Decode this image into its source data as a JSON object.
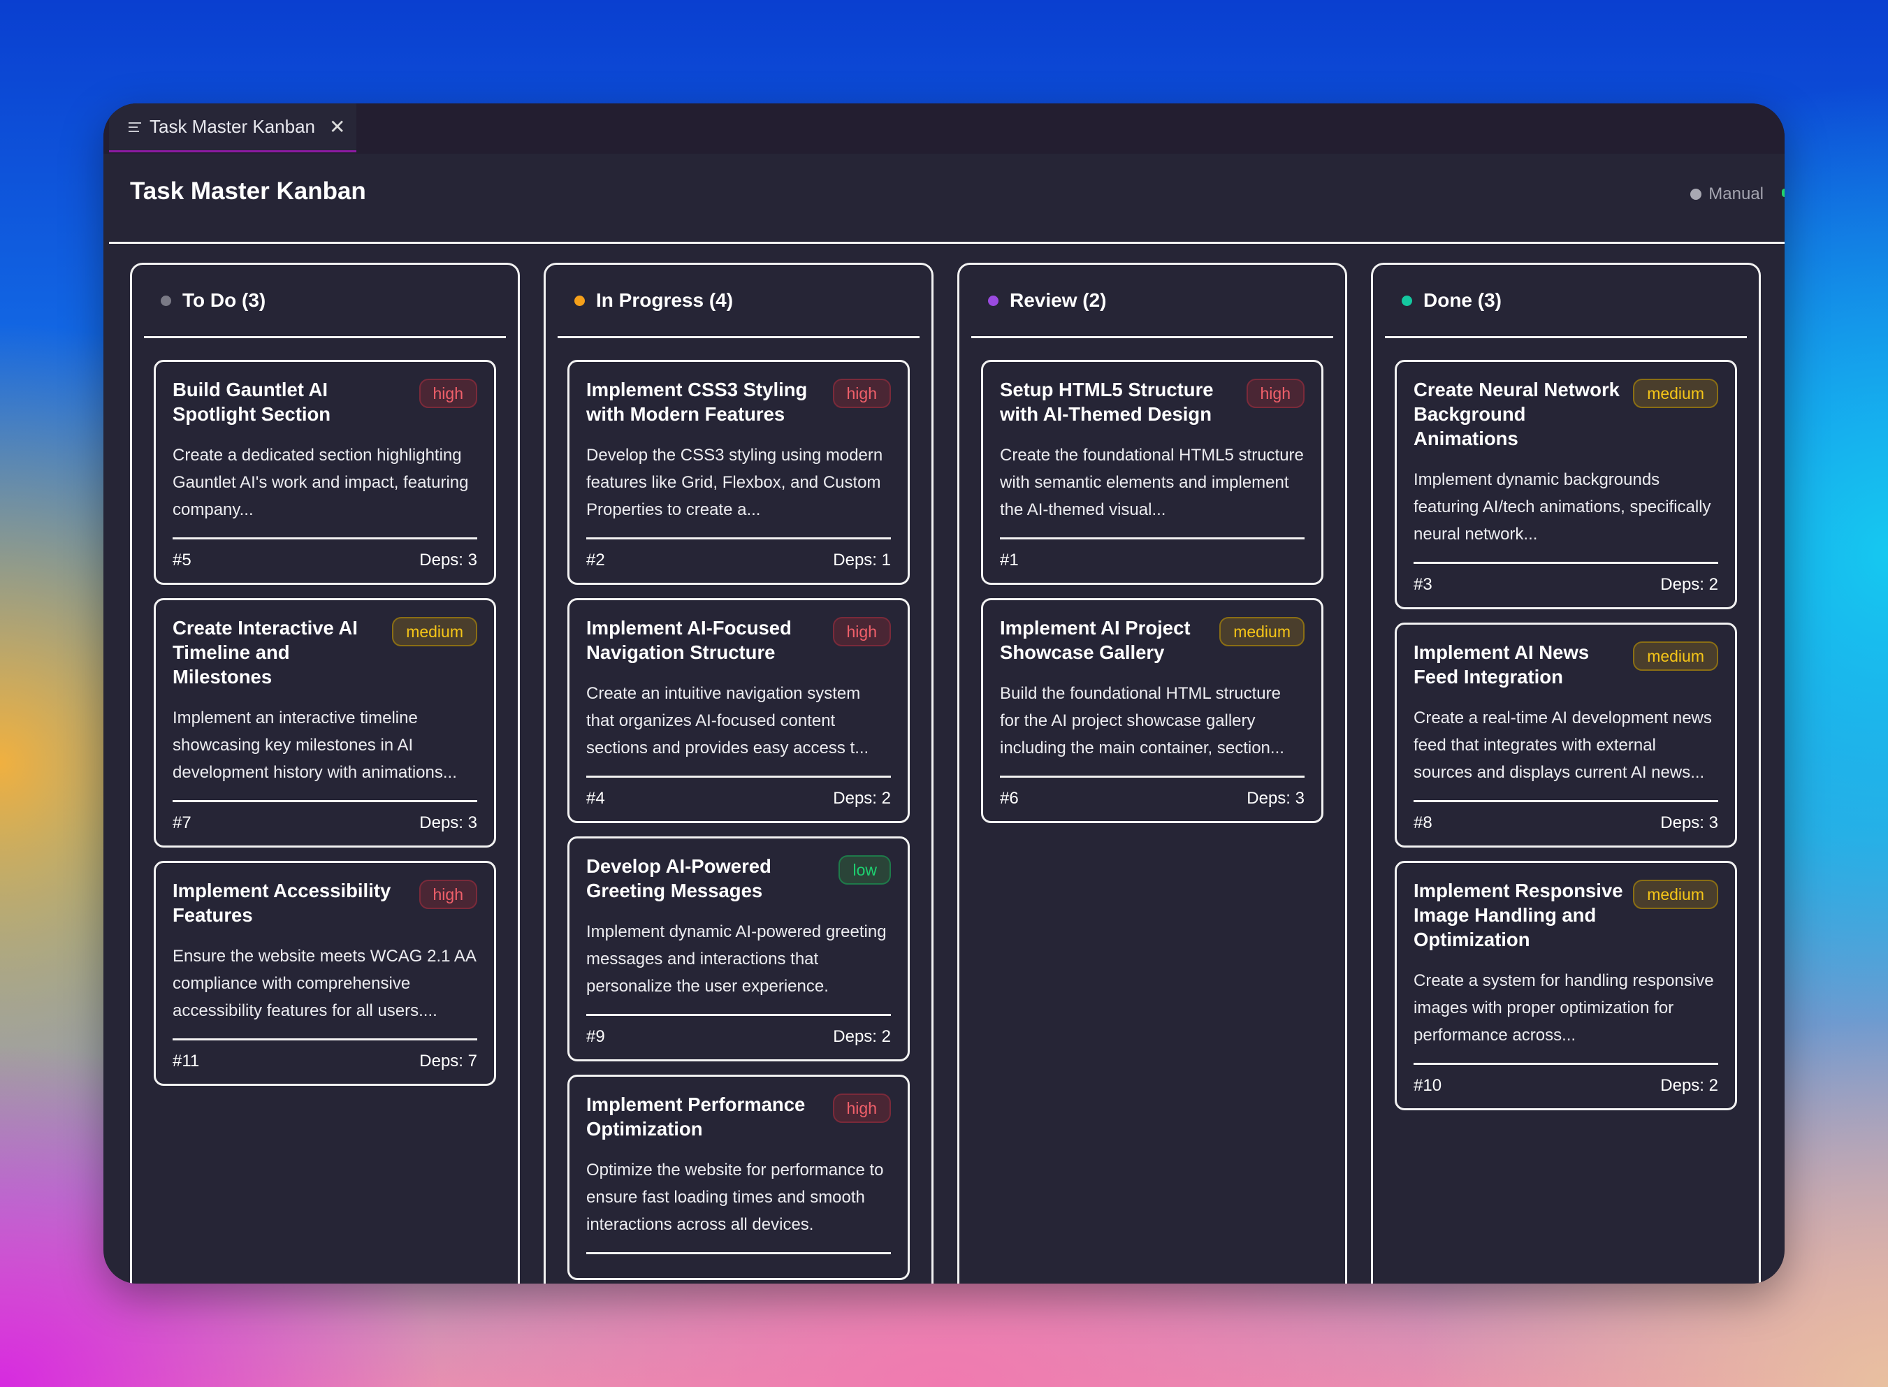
{
  "tab": {
    "icon": "menu-lines-icon",
    "label": "Task Master Kanban",
    "close_icon": "close-icon"
  },
  "header": {
    "title": "Task Master Kanban",
    "mode_label": "Manual",
    "mode_dot_color": "#a8a8b2"
  },
  "priority_colors": {
    "high": "#f0606a",
    "medium": "#f5c518",
    "low": "#1ed070"
  },
  "columns": [
    {
      "title": "To Do (3)",
      "dot_color": "#7a7a86",
      "cards": [
        {
          "title": "Build Gauntlet AI Spotlight Section",
          "priority": "high",
          "description": "Create a dedicated section highlighting Gauntlet AI's work and impact, featuring company...",
          "id": "#5",
          "deps": "Deps: 3"
        },
        {
          "title": "Create Interactive AI Timeline and Milestones",
          "priority": "medium",
          "description": "Implement an interactive timeline showcasing key milestones in AI development history with animations...",
          "id": "#7",
          "deps": "Deps: 3"
        },
        {
          "title": "Implement Accessibility Features",
          "priority": "high",
          "description": "Ensure the website meets WCAG 2.1 AA compliance with comprehensive accessibility features for all users....",
          "id": "#11",
          "deps": "Deps: 7"
        }
      ]
    },
    {
      "title": "In Progress (4)",
      "dot_color": "#f5a01a",
      "cards": [
        {
          "title": "Implement CSS3 Styling with Modern Features",
          "priority": "high",
          "description": "Develop the CSS3 styling using modern features like Grid, Flexbox, and Custom Properties to create a...",
          "id": "#2",
          "deps": "Deps: 1"
        },
        {
          "title": "Implement AI-Focused Navigation Structure",
          "priority": "high",
          "description": "Create an intuitive navigation system that organizes AI-focused content sections and provides easy access t...",
          "id": "#4",
          "deps": "Deps: 2"
        },
        {
          "title": "Develop AI-Powered Greeting Messages",
          "priority": "low",
          "description": "Implement dynamic AI-powered greeting messages and interactions that personalize the user experience.",
          "id": "#9",
          "deps": "Deps: 2"
        },
        {
          "title": "Implement Performance Optimization",
          "priority": "high",
          "description": "Optimize the website for performance to ensure fast loading times and smooth interactions across all devices.",
          "id": "",
          "deps": ""
        }
      ]
    },
    {
      "title": "Review (2)",
      "dot_color": "#9a4ae0",
      "cards": [
        {
          "title": "Setup HTML5 Structure with AI-Themed Design",
          "priority": "high",
          "description": "Create the foundational HTML5 structure with semantic elements and implement the AI-themed visual...",
          "id": "#1",
          "deps": ""
        },
        {
          "title": "Implement AI Project Showcase Gallery",
          "priority": "medium",
          "description": "Build the foundational HTML structure for the AI project showcase gallery including the main container, section...",
          "id": "#6",
          "deps": "Deps: 3"
        }
      ]
    },
    {
      "title": "Done (3)",
      "dot_color": "#14c8a0",
      "cards": [
        {
          "title": "Create Neural Network Background Animations",
          "priority": "medium",
          "description": "Implement dynamic backgrounds featuring AI/tech animations, specifically neural network...",
          "id": "#3",
          "deps": "Deps: 2"
        },
        {
          "title": "Implement AI News Feed Integration",
          "priority": "medium",
          "description": "Create a real-time AI development news feed that integrates with external sources and displays current AI news...",
          "id": "#8",
          "deps": "Deps: 3"
        },
        {
          "title": "Implement Responsive Image Handling and Optimization",
          "priority": "medium",
          "description": "Create a system for handling responsive images with proper optimization for performance across...",
          "id": "#10",
          "deps": "Deps: 2"
        }
      ]
    }
  ]
}
